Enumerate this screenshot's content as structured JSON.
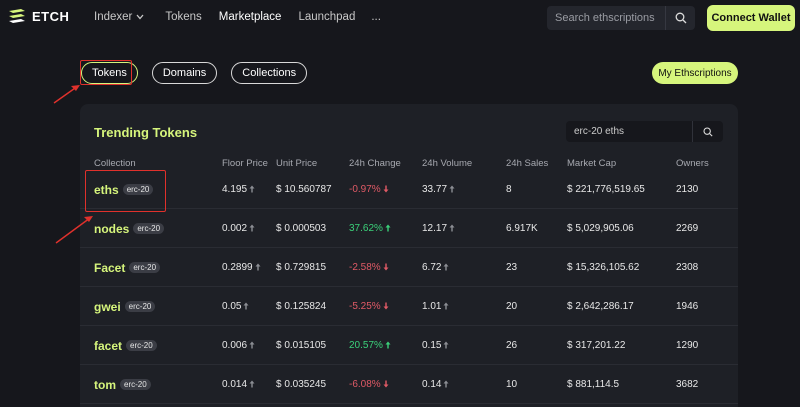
{
  "brand": {
    "name": "ETCH"
  },
  "nav": {
    "items": [
      {
        "label": "Indexer",
        "has_dropdown": true,
        "active": false
      },
      {
        "label": "Tokens",
        "has_dropdown": false,
        "active": false
      },
      {
        "label": "Marketplace",
        "has_dropdown": false,
        "active": true
      },
      {
        "label": "Launchpad",
        "has_dropdown": false,
        "active": false
      },
      {
        "label": "...",
        "has_dropdown": false,
        "active": false
      }
    ]
  },
  "search": {
    "placeholder": "Search ethscriptions",
    "value": ""
  },
  "connect_label": "Connect Wallet",
  "filters": {
    "tabs": [
      {
        "label": "Tokens",
        "active": true
      },
      {
        "label": "Domains",
        "active": false
      },
      {
        "label": "Collections",
        "active": false
      }
    ],
    "my_ethscriptions_label": "My Ethscriptions"
  },
  "trending": {
    "title": "Trending Tokens",
    "search_value": "erc-20 eths",
    "columns": [
      "Collection",
      "Floor Price",
      "Unit Price",
      "24h Change",
      "24h Volume",
      "24h Sales",
      "Market Cap",
      "Owners"
    ],
    "rows": [
      {
        "name": "eths",
        "badge": "erc-20",
        "floor": "4.195",
        "unit": "$ 10.560787",
        "change": "-0.97%",
        "trend": "down",
        "volume": "33.77",
        "sales": "8",
        "mcap": "$ 221,776,519.65",
        "owners": "2130"
      },
      {
        "name": "nodes",
        "badge": "erc-20",
        "floor": "0.002",
        "unit": "$ 0.000503",
        "change": "37.62%",
        "trend": "up",
        "volume": "12.17",
        "sales": "6.917K",
        "mcap": "$ 5,029,905.06",
        "owners": "2269"
      },
      {
        "name": "Facet",
        "badge": "erc-20",
        "floor": "0.2899",
        "unit": "$ 0.729815",
        "change": "-2.58%",
        "trend": "down",
        "volume": "6.72",
        "sales": "23",
        "mcap": "$ 15,326,105.62",
        "owners": "2308"
      },
      {
        "name": "gwei",
        "badge": "erc-20",
        "floor": "0.05",
        "unit": "$ 0.125824",
        "change": "-5.25%",
        "trend": "down",
        "volume": "1.01",
        "sales": "20",
        "mcap": "$ 2,642,286.17",
        "owners": "1946"
      },
      {
        "name": "facet",
        "badge": "erc-20",
        "floor": "0.006",
        "unit": "$ 0.015105",
        "change": "20.57%",
        "trend": "up",
        "volume": "0.15",
        "sales": "26",
        "mcap": "$ 317,201.22",
        "owners": "1290"
      },
      {
        "name": "tom",
        "badge": "erc-20",
        "floor": "0.014",
        "unit": "$ 0.035245",
        "change": "-6.08%",
        "trend": "down",
        "volume": "0.14",
        "sales": "10",
        "mcap": "$ 881,114.5",
        "owners": "3682"
      }
    ]
  },
  "colors": {
    "accent": "#d6f57c",
    "background": "#16171c",
    "card": "#1e2026",
    "down": "#e05a66",
    "up": "#3bd17a",
    "annotation": "#e0312c"
  }
}
